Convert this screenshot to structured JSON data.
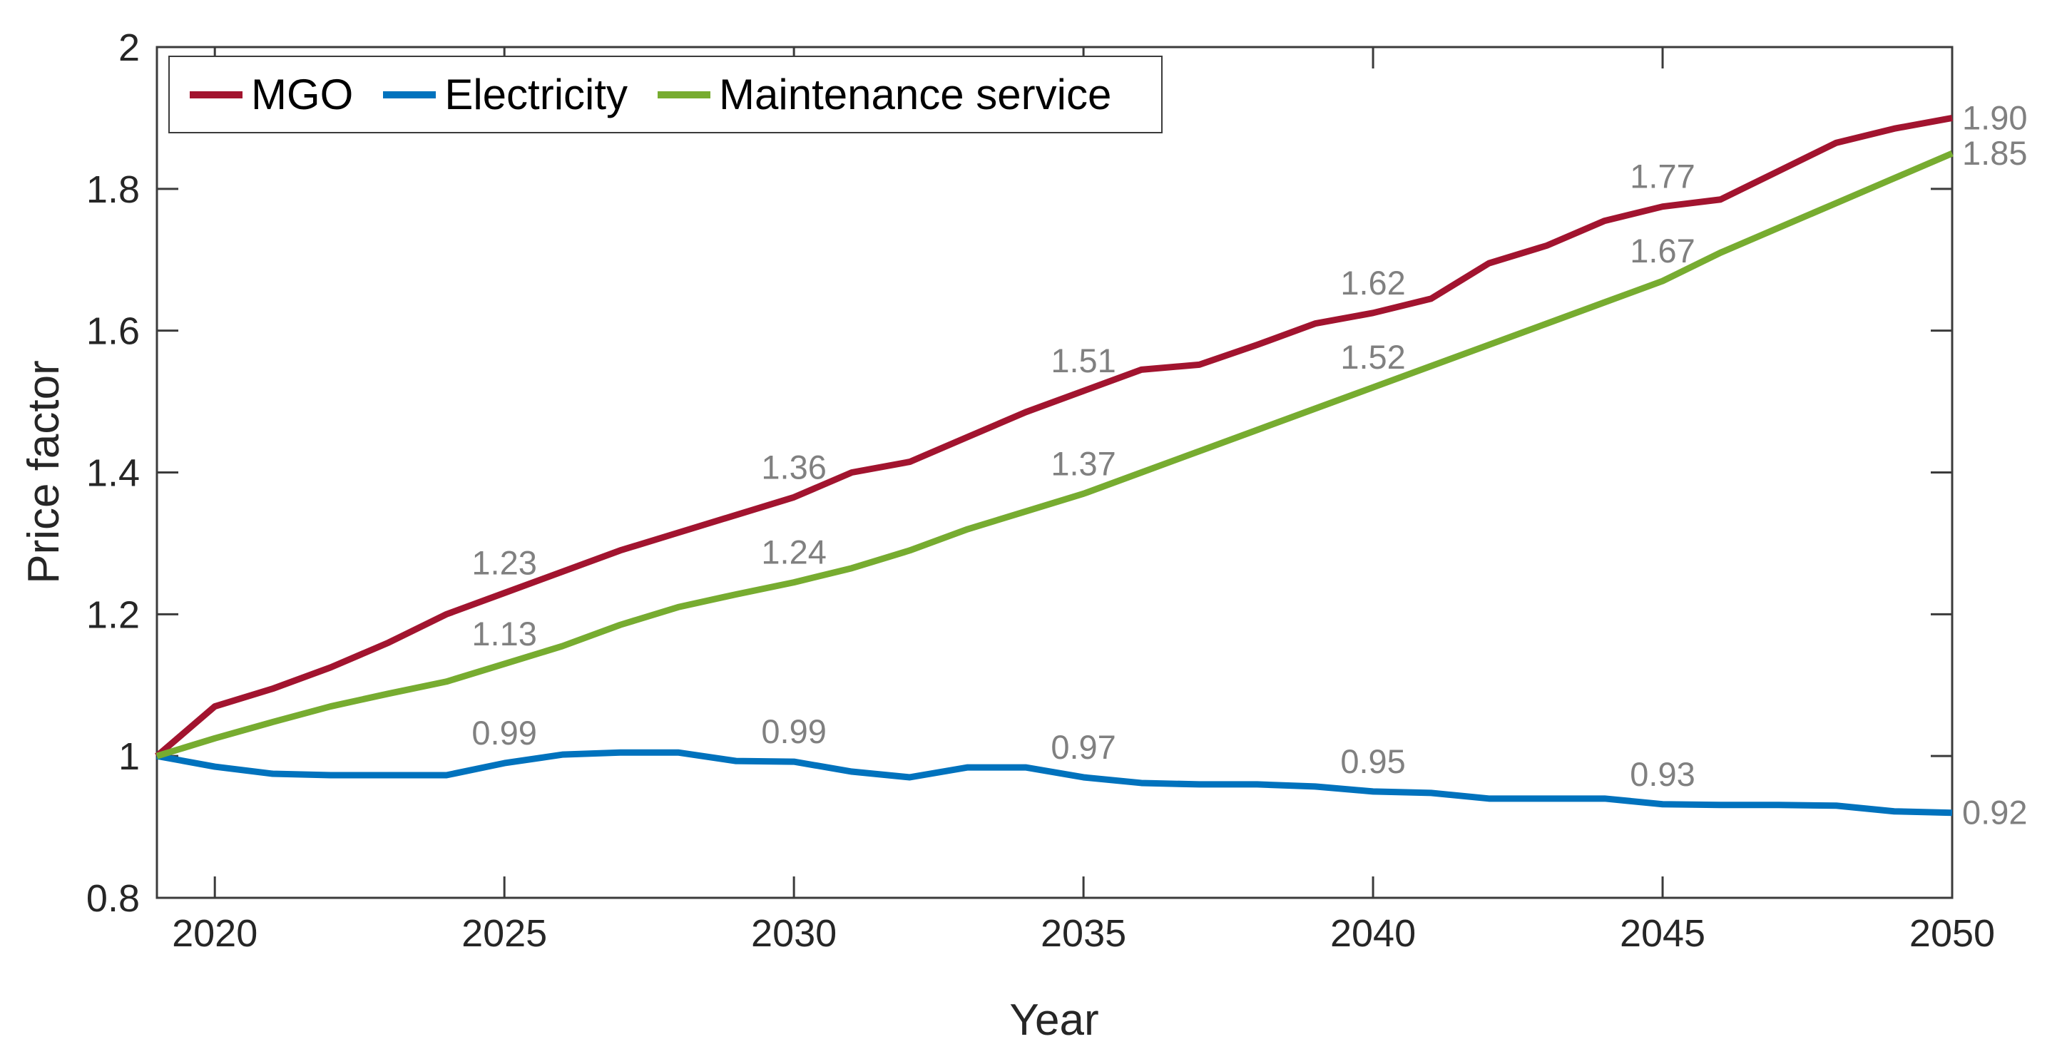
{
  "figure": {
    "background": "#ffffff"
  },
  "chart_data": {
    "type": "line",
    "title": "",
    "xlabel": "Year",
    "ylabel": "Price factor",
    "xlim": [
      2019,
      2050
    ],
    "ylim": [
      0.8,
      2.0
    ],
    "grid": false,
    "legend_position": "top-left-inside",
    "axis_color": "#3b3b3b",
    "tick_label_color": "#262626",
    "data_label_color": "#808080",
    "line_width": 9,
    "x_ticks": [
      {
        "value": 2020,
        "label": "2020"
      },
      {
        "value": 2025,
        "label": "2025"
      },
      {
        "value": 2030,
        "label": "2030"
      },
      {
        "value": 2035,
        "label": "2035"
      },
      {
        "value": 2040,
        "label": "2040"
      },
      {
        "value": 2045,
        "label": "2045"
      },
      {
        "value": 2050,
        "label": "2050"
      }
    ],
    "y_ticks": [
      {
        "value": 0.8,
        "label": "0.8"
      },
      {
        "value": 1.0,
        "label": "1"
      },
      {
        "value": 1.2,
        "label": "1.2"
      },
      {
        "value": 1.4,
        "label": "1.4"
      },
      {
        "value": 1.6,
        "label": "1.6"
      },
      {
        "value": 1.8,
        "label": "1.8"
      },
      {
        "value": 2.0,
        "label": "2"
      }
    ],
    "years": [
      2019,
      2020,
      2021,
      2022,
      2023,
      2024,
      2025,
      2026,
      2027,
      2028,
      2029,
      2030,
      2031,
      2032,
      2033,
      2034,
      2035,
      2036,
      2037,
      2038,
      2039,
      2040,
      2041,
      2042,
      2043,
      2044,
      2045,
      2046,
      2047,
      2048,
      2049,
      2050
    ],
    "series": [
      {
        "name": "MGO",
        "color": "#A2142F",
        "values": [
          1.0,
          1.07,
          1.095,
          1.125,
          1.16,
          1.2,
          1.23,
          1.26,
          1.29,
          1.315,
          1.34,
          1.365,
          1.4,
          1.415,
          1.45,
          1.485,
          1.515,
          1.545,
          1.552,
          1.58,
          1.61,
          1.625,
          1.645,
          1.695,
          1.72,
          1.755,
          1.775,
          1.785,
          1.825,
          1.865,
          1.885,
          1.9
        ],
        "point_labels": [
          {
            "year": 2025,
            "text": "1.23"
          },
          {
            "year": 2030,
            "text": "1.36"
          },
          {
            "year": 2035,
            "text": "1.51"
          },
          {
            "year": 2040,
            "text": "1.62"
          },
          {
            "year": 2045,
            "text": "1.77"
          }
        ],
        "end_label": "1.90"
      },
      {
        "name": "Electricity",
        "color": "#0072BD",
        "values": [
          1.0,
          0.985,
          0.975,
          0.973,
          0.973,
          0.973,
          0.99,
          1.002,
          1.005,
          1.005,
          0.993,
          0.992,
          0.978,
          0.97,
          0.984,
          0.984,
          0.97,
          0.962,
          0.96,
          0.96,
          0.957,
          0.95,
          0.948,
          0.94,
          0.94,
          0.94,
          0.932,
          0.931,
          0.931,
          0.93,
          0.922,
          0.92
        ],
        "point_labels": [
          {
            "year": 2025,
            "text": "0.99"
          },
          {
            "year": 2030,
            "text": "0.99"
          },
          {
            "year": 2035,
            "text": "0.97"
          },
          {
            "year": 2040,
            "text": "0.95"
          },
          {
            "year": 2045,
            "text": "0.93"
          }
        ],
        "end_label": "0.92"
      },
      {
        "name": "Maintenance service",
        "color": "#77AC30",
        "values": [
          1.0,
          1.025,
          1.048,
          1.07,
          1.088,
          1.105,
          1.13,
          1.155,
          1.185,
          1.21,
          1.228,
          1.245,
          1.265,
          1.29,
          1.32,
          1.345,
          1.37,
          1.4,
          1.43,
          1.46,
          1.49,
          1.52,
          1.55,
          1.58,
          1.61,
          1.64,
          1.67,
          1.71,
          1.745,
          1.78,
          1.815,
          1.85
        ],
        "point_labels": [
          {
            "year": 2025,
            "text": "1.13"
          },
          {
            "year": 2030,
            "text": "1.24"
          },
          {
            "year": 2035,
            "text": "1.37"
          },
          {
            "year": 2040,
            "text": "1.52"
          },
          {
            "year": 2045,
            "text": "1.67"
          }
        ],
        "end_label": "1.85"
      }
    ]
  }
}
